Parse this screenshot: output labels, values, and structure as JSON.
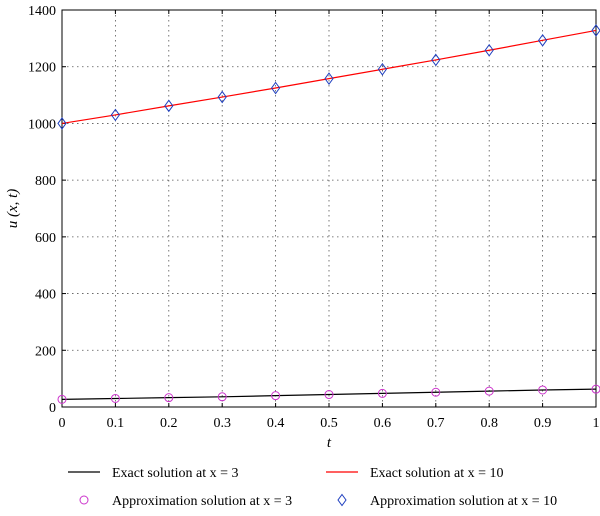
{
  "chart_data": {
    "type": "line",
    "title": "",
    "xlabel": "t",
    "ylabel": "u (x, t)",
    "xlim": [
      0,
      1
    ],
    "ylim": [
      0,
      1400
    ],
    "xticks": [
      "0",
      "0.1",
      "0.2",
      "0.3",
      "0.4",
      "0.5",
      "0.6",
      "0.7",
      "0.8",
      "0.9",
      "1"
    ],
    "yticks": [
      "0",
      "200",
      "400",
      "600",
      "800",
      "1000",
      "1200",
      "1400"
    ],
    "grid": true,
    "legend_position": "bottom",
    "x": [
      0,
      0.1,
      0.2,
      0.3,
      0.4,
      0.5,
      0.6,
      0.7,
      0.8,
      0.9,
      1.0
    ],
    "series": [
      {
        "name": "Exact solution at x = 3",
        "kind": "line",
        "color": "#000000",
        "values": [
          27,
          30,
          33,
          36,
          40,
          44,
          48,
          52,
          56,
          60,
          63
        ]
      },
      {
        "name": "Exact solution at x = 10",
        "kind": "line",
        "color": "#ff0000",
        "values": [
          1000,
          1030,
          1062,
          1093,
          1125,
          1158,
          1191,
          1224,
          1258,
          1293,
          1328
        ]
      },
      {
        "name": "Approximation solution at x = 3",
        "kind": "marker",
        "marker": "circle",
        "color": "#cc33cc",
        "values": [
          27,
          30,
          33,
          36,
          40,
          44,
          48,
          52,
          56,
          60,
          63
        ]
      },
      {
        "name": "Approximation solution at x = 10",
        "kind": "marker",
        "marker": "diamond",
        "color": "#1f3fbf",
        "values": [
          1000,
          1030,
          1062,
          1093,
          1125,
          1158,
          1191,
          1224,
          1258,
          1293,
          1328
        ]
      }
    ]
  }
}
